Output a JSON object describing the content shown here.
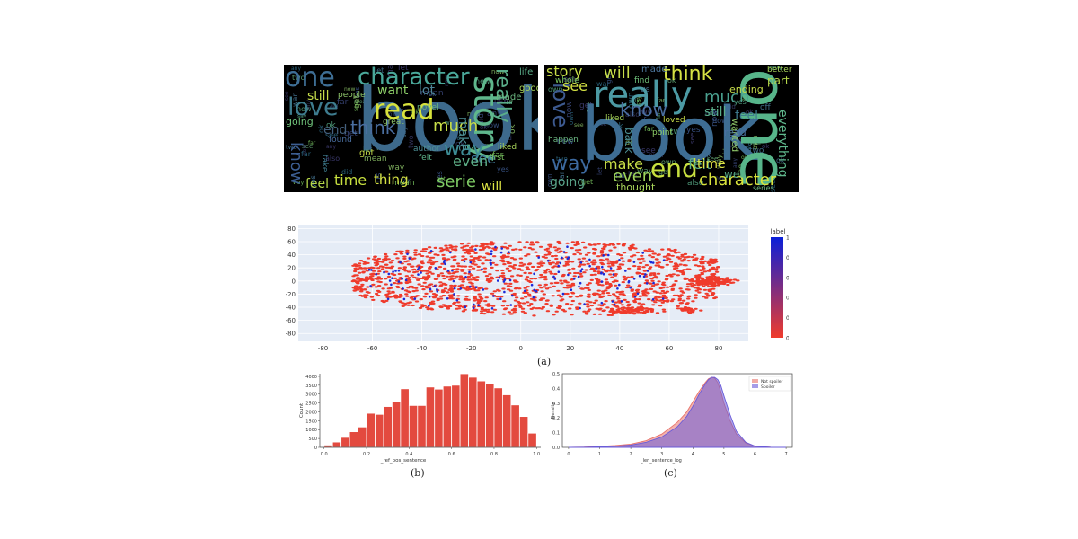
{
  "wordcloud_left": {
    "words": [
      {
        "text": "book",
        "color": "#3d6a8c"
      },
      {
        "text": "one",
        "color": "#3e6e95"
      },
      {
        "text": "character",
        "color": "#4aa89a"
      },
      {
        "text": "read",
        "color": "#d8e23c"
      },
      {
        "text": "love",
        "color": "#3e7c8f"
      },
      {
        "text": "story",
        "color": "#5fb78c"
      },
      {
        "text": "think",
        "color": "#4a6ea0"
      },
      {
        "text": "much",
        "color": "#c7dd48"
      },
      {
        "text": "really",
        "color": "#5aae8a"
      },
      {
        "text": "way",
        "color": "#3d8c95"
      },
      {
        "text": "serie",
        "color": "#7ecb64"
      },
      {
        "text": "time",
        "color": "#c7df3f"
      },
      {
        "text": "thing",
        "color": "#d3e043"
      },
      {
        "text": "feel",
        "color": "#b6d84b"
      },
      {
        "text": "see",
        "color": "#3f7a9d"
      },
      {
        "text": "even",
        "color": "#5dae86"
      },
      {
        "text": "will",
        "color": "#dfe545"
      },
      {
        "text": "make",
        "color": "#4c8e94"
      },
      {
        "text": "still",
        "color": "#c6dd4a"
      },
      {
        "text": "want",
        "color": "#8fd169"
      },
      {
        "text": "know",
        "color": "#3c5e92"
      },
      {
        "text": "lot",
        "color": "#4f8699"
      },
      {
        "text": "end",
        "color": "#44607d"
      },
      {
        "text": "people",
        "color": "#8fc66a"
      },
      {
        "text": "going",
        "color": "#6fc27a"
      },
      {
        "text": "good",
        "color": "#a9d65a"
      },
      {
        "text": "made",
        "color": "#6bb680"
      },
      {
        "text": "life",
        "color": "#5aae8a"
      },
      {
        "text": "novel",
        "color": "#6bb680"
      },
      {
        "text": "great",
        "color": "#8fc66a"
      },
      {
        "text": "first",
        "color": "#7ecb64"
      },
      {
        "text": "liked",
        "color": "#a9d65a"
      },
      {
        "text": "got",
        "color": "#c7dd48"
      },
      {
        "text": "author",
        "color": "#4c8e94"
      },
      {
        "text": "felt",
        "color": "#5fb78c"
      },
      {
        "text": "take",
        "color": "#3e7c8f"
      },
      {
        "text": "found",
        "color": "#4a6ea0"
      }
    ]
  },
  "wordcloud_right": {
    "words": [
      {
        "text": "book",
        "color": "#3e6d93"
      },
      {
        "text": "one",
        "color": "#57b58a"
      },
      {
        "text": "really",
        "color": "#4c9aa4"
      },
      {
        "text": "story",
        "color": "#c9df48"
      },
      {
        "text": "will",
        "color": "#c6dd4a"
      },
      {
        "text": "think",
        "color": "#d6e244"
      },
      {
        "text": "made",
        "color": "#4f79a0"
      },
      {
        "text": "love",
        "color": "#3d5a90"
      },
      {
        "text": "see",
        "color": "#d3e043"
      },
      {
        "text": "much",
        "color": "#4aa08f"
      },
      {
        "text": "know",
        "color": "#4a6ea0"
      },
      {
        "text": "still",
        "color": "#5aae8a"
      },
      {
        "text": "way",
        "color": "#3d6aa0"
      },
      {
        "text": "make",
        "color": "#c9df48"
      },
      {
        "text": "even",
        "color": "#9ed45b"
      },
      {
        "text": "end",
        "color": "#c7df3f"
      },
      {
        "text": "felt",
        "color": "#5dae86"
      },
      {
        "text": "time",
        "color": "#dfe545"
      },
      {
        "text": "character",
        "color": "#d8e23c"
      },
      {
        "text": "going",
        "color": "#5aa58a"
      },
      {
        "text": "thought",
        "color": "#a9d65a"
      },
      {
        "text": "everything",
        "color": "#5fb78c"
      },
      {
        "text": "feel",
        "color": "#3e7c8f"
      },
      {
        "text": "part",
        "color": "#b6d84b"
      },
      {
        "text": "ending",
        "color": "#c6dd4a"
      },
      {
        "text": "wanted",
        "color": "#8fc66a"
      },
      {
        "text": "liked",
        "color": "#a9d65a"
      },
      {
        "text": "back",
        "color": "#4c8e94"
      },
      {
        "text": "happen",
        "color": "#6bb680"
      },
      {
        "text": "whole",
        "color": "#7ecb64"
      },
      {
        "text": "loved",
        "color": "#c7dd48"
      },
      {
        "text": "well",
        "color": "#5aae8a"
      },
      {
        "text": "find",
        "color": "#6fc27a"
      },
      {
        "text": "better",
        "color": "#a9d65a"
      },
      {
        "text": "point",
        "color": "#8fd169"
      },
      {
        "text": "read",
        "color": "#4a6ea0"
      },
      {
        "text": "series",
        "color": "#6bb680"
      }
    ]
  },
  "chart_data": [
    {
      "type": "scatter",
      "xlim": [
        -90,
        92
      ],
      "ylim": [
        -92,
        86
      ],
      "x_ticks": [
        -80,
        -60,
        -40,
        -20,
        0,
        20,
        40,
        60,
        80
      ],
      "y_ticks": [
        80,
        60,
        40,
        20,
        0,
        -20,
        -40,
        -60,
        -80
      ],
      "grid": true,
      "colorbar": {
        "title": "label",
        "range": [
          0,
          1
        ],
        "ticks": [
          "0",
          "0.2",
          "0.4",
          "0.6",
          "0.8",
          "1"
        ],
        "colors": [
          "#ef3b2c",
          "#0a1fd8"
        ]
      },
      "series": [
        {
          "value": 0,
          "color": "#ef3b2c"
        },
        {
          "value": 1,
          "color": "#1a2ad8"
        }
      ],
      "caption": "(a)"
    },
    {
      "type": "bar",
      "xlabel": "_ref_pos_sentence",
      "ylabel": "Count",
      "xlim": [
        -0.02,
        1.02
      ],
      "ylim": [
        0,
        4150
      ],
      "x_ticks": [
        "0.0",
        "0.2",
        "0.4",
        "0.6",
        "0.8",
        "1.0"
      ],
      "y_ticks": [
        "0",
        "500",
        "1000",
        "1500",
        "2000",
        "2500",
        "3000",
        "3500",
        "4000"
      ],
      "bin_width": 0.04,
      "bin_starts": [
        0.0,
        0.04,
        0.08,
        0.12,
        0.16,
        0.2,
        0.24,
        0.28,
        0.32,
        0.36,
        0.4,
        0.44,
        0.48,
        0.52,
        0.56,
        0.6,
        0.64,
        0.68,
        0.72,
        0.76,
        0.8,
        0.84,
        0.88,
        0.92,
        0.96
      ],
      "values": [
        130,
        300,
        560,
        880,
        1150,
        1920,
        1860,
        2300,
        2580,
        3300,
        2360,
        2360,
        3400,
        3280,
        3450,
        3500,
        4150,
        3950,
        3740,
        3600,
        3350,
        2960,
        2390,
        1740,
        800
      ],
      "color": "#e34a3f",
      "caption": "(b)"
    },
    {
      "type": "area",
      "xlabel": "_len_sentence_log",
      "ylabel": "Density",
      "xlim": [
        -0.2,
        7.2
      ],
      "ylim": [
        0,
        0.5
      ],
      "x_ticks": [
        "0",
        "1",
        "2",
        "3",
        "4",
        "5",
        "6",
        "7"
      ],
      "y_ticks": [
        "0.0",
        "0.1",
        "0.2",
        "0.3",
        "0.4",
        "0.5"
      ],
      "x": [
        0,
        0.5,
        1,
        1.5,
        2,
        2.5,
        3,
        3.5,
        3.8,
        4.0,
        4.2,
        4.4,
        4.5,
        4.6,
        4.7,
        4.8,
        4.9,
        5.0,
        5.2,
        5.4,
        5.7,
        6.0,
        6.5,
        7.0
      ],
      "series": [
        {
          "name": "Not spoiler",
          "color": "#e8736b",
          "values": [
            0.0,
            0.002,
            0.007,
            0.012,
            0.022,
            0.045,
            0.09,
            0.17,
            0.24,
            0.31,
            0.38,
            0.44,
            0.465,
            0.475,
            0.47,
            0.44,
            0.38,
            0.3,
            0.18,
            0.09,
            0.03,
            0.008,
            0.001,
            0.0
          ]
        },
        {
          "name": "Spoiler",
          "color": "#6a5bd8",
          "values": [
            0.0,
            0.001,
            0.004,
            0.008,
            0.015,
            0.035,
            0.07,
            0.14,
            0.21,
            0.28,
            0.36,
            0.43,
            0.46,
            0.475,
            0.475,
            0.46,
            0.42,
            0.35,
            0.22,
            0.11,
            0.035,
            0.008,
            0.001,
            0.0
          ]
        }
      ],
      "legend": "top-right",
      "caption": "(c)"
    }
  ]
}
